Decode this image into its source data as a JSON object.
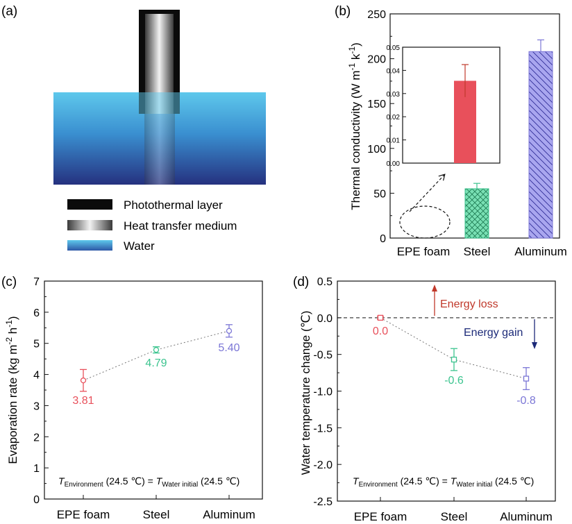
{
  "panels": {
    "a": {
      "label": "(a)",
      "legend": [
        "Photothermal layer",
        "Heat transfer medium",
        "Water"
      ]
    },
    "b": {
      "label": "(b)"
    },
    "c": {
      "label": "(c)",
      "note_t": "T",
      "note_env": "Environment",
      "note_mid": " (24.5 ℃) = ",
      "note_t2": "T",
      "note_water": "Water initial",
      "note_end": " (24.5 ℃)"
    },
    "d": {
      "label": "(d)",
      "note_t": "T",
      "note_env": "Environment",
      "note_mid": " (24.5 ℃) = ",
      "note_t2": "T",
      "note_water": "Water initial",
      "note_end": " (24.5 ℃)",
      "energy_loss": "Energy loss",
      "energy_gain": "Energy gain"
    }
  },
  "colors": {
    "red": "#e8505b",
    "green": "#3cc48f",
    "purple": "#7b76d6",
    "water_top": "#5ec8ec",
    "water_bottom": "#25317f",
    "loss_arrow": "#c0392b",
    "gain_arrow": "#1c2a78"
  },
  "chart_data": [
    {
      "panel": "b",
      "type": "bar",
      "categories": [
        "EPE foam",
        "Steel",
        "Aluminum"
      ],
      "values": [
        0.036,
        55,
        208
      ],
      "errors": [
        0.007,
        6,
        13
      ],
      "ylabel": "Thermal conductivity (W m-1 k-1)",
      "ylim": [
        0,
        250
      ],
      "yticks": [
        "0",
        "50",
        "100",
        "150",
        "200",
        "250"
      ],
      "inset": {
        "category": "EPE foam",
        "value": 0.0355,
        "error": 0.007,
        "ylim": [
          0,
          0.05
        ],
        "yticks": [
          "0.00",
          "0.01",
          "0.02",
          "0.03",
          "0.04",
          "0.05"
        ]
      }
    },
    {
      "panel": "c",
      "type": "scatter",
      "categories": [
        "EPE foam",
        "Steel",
        "Aluminum"
      ],
      "values": [
        3.81,
        4.79,
        5.4
      ],
      "labels": [
        "3.81",
        "4.79",
        "5.40"
      ],
      "errors": [
        0.35,
        0.1,
        0.2
      ],
      "ylabel": "Evaporation rate (kg m-2 h-1)",
      "ylim": [
        0,
        7
      ],
      "yticks": [
        "0",
        "1",
        "2",
        "3",
        "4",
        "5",
        "6",
        "7"
      ]
    },
    {
      "panel": "d",
      "type": "scatter",
      "categories": [
        "EPE foam",
        "Steel",
        "Aluminum"
      ],
      "values": [
        0.0,
        -0.57,
        -0.83
      ],
      "labels": [
        "0.0",
        "-0.6",
        "-0.8"
      ],
      "errors": [
        0.02,
        0.15,
        0.15
      ],
      "ylabel": "Water temperature change (℃)",
      "ylim": [
        -2.5,
        0.5
      ],
      "yticks": [
        "0.5",
        "0.0",
        "-0.5",
        "-1.0",
        "-1.5",
        "-2.0",
        "-2.5"
      ]
    }
  ]
}
